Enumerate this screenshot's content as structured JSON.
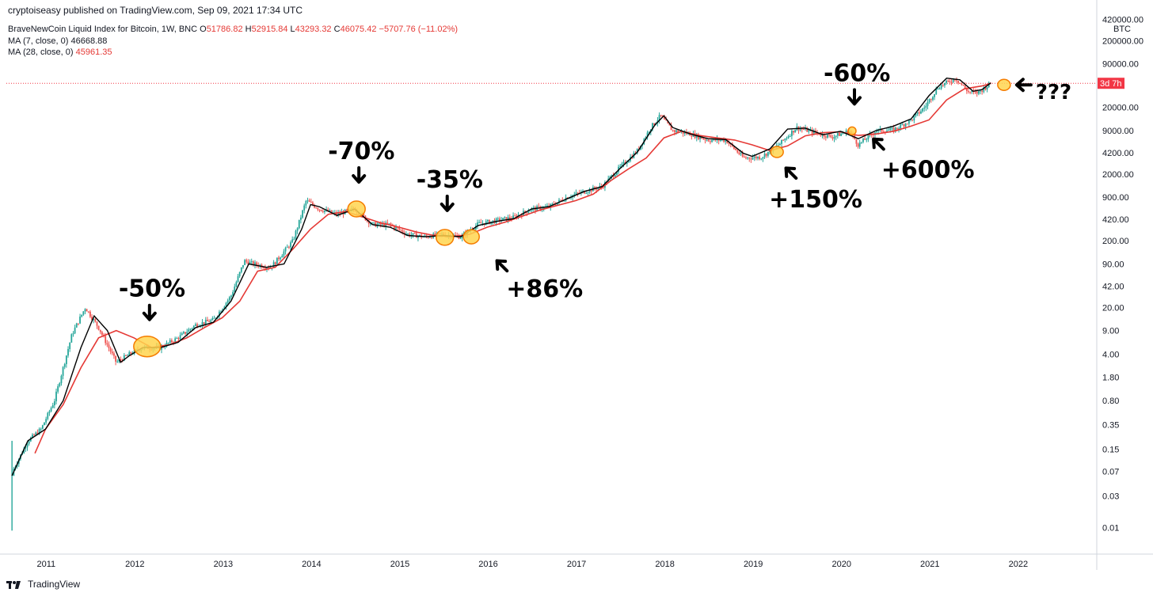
{
  "header": {
    "publisher": "cryptoiseasy published on TradingView.com, Sep 09, 2021 17:34 UTC",
    "symbol": "BraveNewCoin Liquid Index for Bitcoin, 1W, BNC",
    "open_label": "O",
    "open": "51786.82",
    "high_label": "H",
    "high": "52915.84",
    "low_label": "L",
    "low": "43293.32",
    "close_label": "C",
    "close": "46075.42",
    "change": "−5707.76 (−11.02%)",
    "ma7_label": "MA (7, close, 0)",
    "ma7_value": "46668.88",
    "ma28_label": "MA (28, close, 0)",
    "ma28_value": "45961.35"
  },
  "footer": {
    "brand": "TradingView"
  },
  "colors": {
    "up": "#26a69a",
    "down": "#ef5350",
    "ma7": "#000000",
    "ma28": "#e53935",
    "last_price": "#f23645",
    "marker_fill": "#ffd54f",
    "marker_stroke": "#f57c00"
  },
  "chart_data": {
    "type": "candlestick",
    "title": "BraveNewCoin Liquid Index for Bitcoin, 1W, BNC",
    "currency": "BTC",
    "y_scale": "log",
    "ylim": [
      0.004,
      600000
    ],
    "xlim": [
      2010.55,
      2022.9
    ],
    "grid": false,
    "x_ticks": [
      "2011",
      "2012",
      "2013",
      "2014",
      "2015",
      "2016",
      "2017",
      "2018",
      "2019",
      "2020",
      "2021",
      "2022"
    ],
    "y_ticks": [
      "420000.00",
      "200000.00",
      "90000.00",
      "20000.00",
      "9000.00",
      "4200.00",
      "2000.00",
      "900.00",
      "420.00",
      "200.00",
      "90.00",
      "42.00",
      "20.00",
      "9.00",
      "4.00",
      "1.80",
      "0.80",
      "0.35",
      "0.15",
      "0.07",
      "0.03",
      "0.01"
    ],
    "last_price_countdown": "3d 7h",
    "series": [
      {
        "name": "price",
        "x": [
          2010.6,
          2010.8,
          2010.95,
          2011.1,
          2011.3,
          2011.45,
          2011.6,
          2011.8,
          2011.95,
          2012.1,
          2012.3,
          2012.5,
          2012.7,
          2012.9,
          2013.1,
          2013.25,
          2013.35,
          2013.55,
          2013.8,
          2013.95,
          2014.1,
          2014.3,
          2014.5,
          2014.7,
          2014.9,
          2015.1,
          2015.3,
          2015.5,
          2015.7,
          2015.9,
          2016.1,
          2016.3,
          2016.5,
          2016.7,
          2016.9,
          2017.1,
          2017.3,
          2017.5,
          2017.7,
          2017.85,
          2017.96,
          2018.1,
          2018.3,
          2018.5,
          2018.7,
          2018.9,
          2019.1,
          2019.3,
          2019.5,
          2019.7,
          2019.9,
          2020.1,
          2020.2,
          2020.4,
          2020.6,
          2020.8,
          2020.95,
          2021.1,
          2021.3,
          2021.45,
          2021.55,
          2021.7
        ],
        "y": [
          0.06,
          0.2,
          0.3,
          0.8,
          8,
          20,
          10,
          3,
          4,
          5,
          5,
          7,
          11,
          13,
          30,
          100,
          90,
          80,
          200,
          800,
          600,
          500,
          600,
          350,
          350,
          250,
          230,
          250,
          230,
          360,
          400,
          450,
          600,
          650,
          900,
          1100,
          1300,
          2500,
          4500,
          10000,
          15000,
          9000,
          8000,
          6500,
          6500,
          3500,
          3600,
          5500,
          10000,
          8500,
          7200,
          8900,
          5500,
          9000,
          9200,
          13000,
          20000,
          40000,
          55000,
          34000,
          33000,
          46075
        ]
      },
      {
        "name": "MA (7, close, 0)",
        "x": [
          2010.62,
          2010.8,
          2011.0,
          2011.2,
          2011.4,
          2011.55,
          2011.7,
          2011.85,
          2011.95,
          2012.1,
          2012.3,
          2012.5,
          2012.7,
          2012.9,
          2013.1,
          2013.3,
          2013.5,
          2013.7,
          2013.9,
          2014.0,
          2014.1,
          2014.3,
          2014.5,
          2014.7,
          2014.9,
          2015.1,
          2015.3,
          2015.5,
          2015.7,
          2015.9,
          2016.1,
          2016.3,
          2016.5,
          2016.7,
          2016.9,
          2017.1,
          2017.3,
          2017.5,
          2017.7,
          2017.9,
          2018.0,
          2018.1,
          2018.3,
          2018.5,
          2018.7,
          2018.9,
          2019.0,
          2019.2,
          2019.4,
          2019.6,
          2019.8,
          2020.0,
          2020.2,
          2020.4,
          2020.6,
          2020.8,
          2021.0,
          2021.2,
          2021.35,
          2021.5,
          2021.6,
          2021.7
        ],
        "y": [
          0.06,
          0.2,
          0.3,
          0.8,
          5,
          15,
          9,
          3,
          3.8,
          5,
          5,
          6,
          10,
          12,
          25,
          90,
          80,
          90,
          300,
          700,
          650,
          480,
          600,
          350,
          320,
          240,
          230,
          240,
          230,
          340,
          390,
          430,
          600,
          650,
          850,
          1100,
          1300,
          2400,
          4300,
          11000,
          15000,
          10000,
          8000,
          6800,
          6600,
          4100,
          3700,
          4800,
          9500,
          9800,
          7800,
          8800,
          6800,
          9000,
          10500,
          13500,
          30000,
          55000,
          52000,
          35000,
          37000,
          46668
        ]
      },
      {
        "name": "MA (28, close, 0)",
        "x": [
          2010.88,
          2011.0,
          2011.2,
          2011.4,
          2011.6,
          2011.8,
          2012.0,
          2012.2,
          2012.4,
          2012.6,
          2012.8,
          2013.0,
          2013.2,
          2013.4,
          2013.6,
          2013.8,
          2014.0,
          2014.2,
          2014.4,
          2014.6,
          2014.8,
          2015.0,
          2015.2,
          2015.4,
          2015.6,
          2015.8,
          2016.0,
          2016.2,
          2016.4,
          2016.6,
          2016.8,
          2017.0,
          2017.2,
          2017.4,
          2017.6,
          2017.8,
          2018.0,
          2018.2,
          2018.4,
          2018.6,
          2018.8,
          2019.0,
          2019.2,
          2019.4,
          2019.6,
          2019.8,
          2020.0,
          2020.2,
          2020.4,
          2020.6,
          2020.8,
          2021.0,
          2021.2,
          2021.4,
          2021.6,
          2021.7
        ],
        "y": [
          0.13,
          0.3,
          0.7,
          2.5,
          7,
          9,
          7,
          5,
          5.5,
          7,
          10,
          14,
          25,
          70,
          80,
          150,
          300,
          500,
          550,
          450,
          370,
          320,
          270,
          240,
          230,
          250,
          320,
          380,
          470,
          580,
          680,
          800,
          1000,
          1600,
          2400,
          3500,
          7000,
          8800,
          7600,
          7000,
          6500,
          5500,
          4500,
          5300,
          7500,
          8400,
          8600,
          7600,
          8000,
          8800,
          10500,
          13000,
          26000,
          38000,
          42000,
          45961
        ]
      }
    ],
    "last_price": 46075.42,
    "annotations": [
      {
        "label": "-50%",
        "x": 2012.15,
        "y": 5.2,
        "kind": "drop"
      },
      {
        "label": "-70%",
        "x": 2014.52,
        "y": 600,
        "kind": "drop"
      },
      {
        "label": "-35%",
        "x": 2015.52,
        "y": 225,
        "kind": "drop"
      },
      {
        "label": "+86%",
        "x": 2015.82,
        "y": 230,
        "kind": "rise"
      },
      {
        "label": "+150%",
        "x": 2019.28,
        "y": 4300,
        "kind": "rise"
      },
      {
        "label": "-60%",
        "x": 2020.13,
        "y": 8900,
        "kind": "drop"
      },
      {
        "label": "+600%",
        "x": 2020.28,
        "y": 8900,
        "kind": "rise-small"
      },
      {
        "label": "???",
        "x": 2021.85,
        "y": 46075,
        "kind": "question"
      }
    ]
  }
}
